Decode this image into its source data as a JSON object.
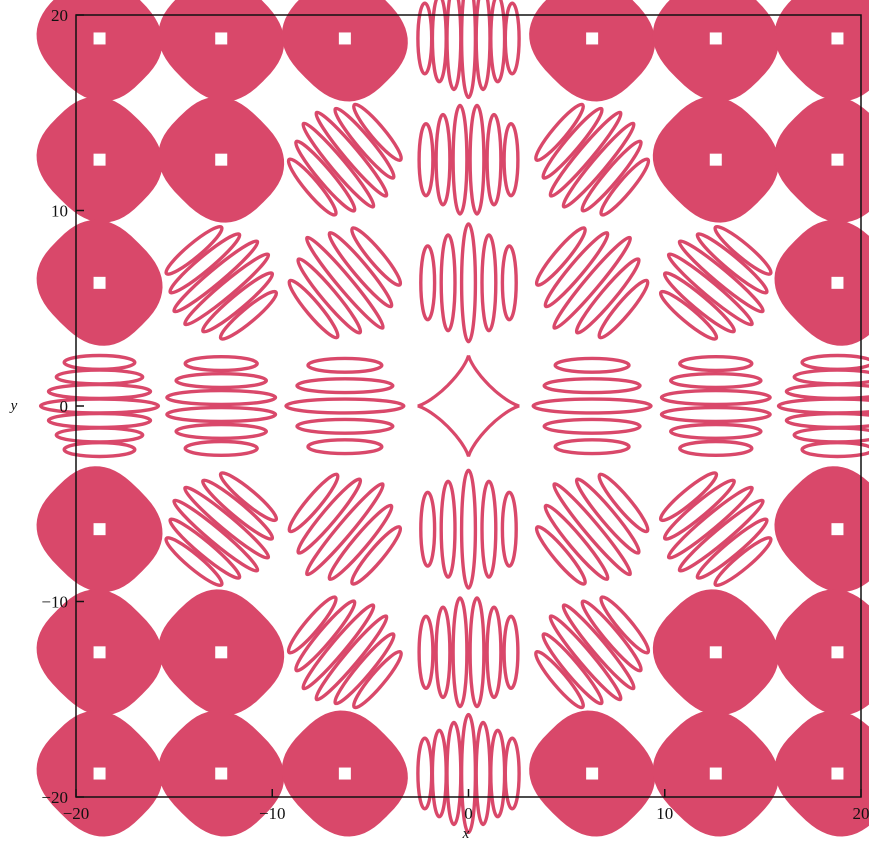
{
  "chart_data": {
    "type": "scatter",
    "title": "",
    "xlabel": "x",
    "ylabel": "y",
    "xlim": [
      -20,
      20
    ],
    "ylim": [
      -20,
      20
    ],
    "xticks": [
      -20,
      -10,
      0,
      10,
      20
    ],
    "yticks": [
      -20,
      -10,
      0,
      10,
      20
    ],
    "xtick_labels": [
      "−20",
      "−10",
      "0",
      "10",
      "20"
    ],
    "ytick_labels": [
      "−20",
      "−10",
      "0",
      "10",
      "20"
    ],
    "grid": false,
    "legend": "none",
    "curve_color": "#d9486a",
    "series": [
      {
        "description_free": true,
        "kind": "implicit-curve-islands",
        "centers_x": [
          -18.8,
          -12.6,
          -6.3,
          0,
          6.3,
          12.6,
          18.8
        ],
        "centers_y": [
          18.8,
          12.6,
          6.3,
          0,
          -6.3,
          -12.6,
          -18.8
        ]
      }
    ]
  }
}
